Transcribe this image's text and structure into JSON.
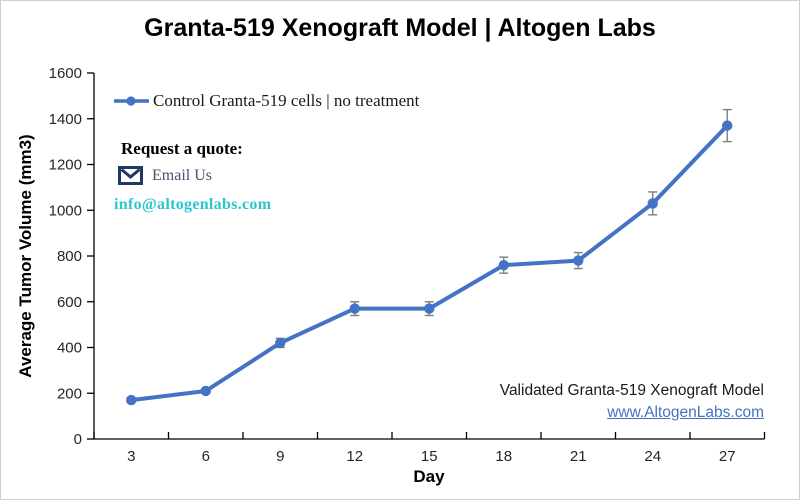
{
  "header": {
    "title": "Granta-519 Xenograft Model | Altogen Labs"
  },
  "quote": {
    "heading": "Request a quote:",
    "email_label": "Email Us",
    "email_address": "info@altogenlabs.com"
  },
  "footer": {
    "note": "Validated Granta-519 Xenograft Model",
    "link": "www.AltogenLabs.com"
  },
  "colors": {
    "series_blue": "#4472C4",
    "error_bar_gray": "#7F7F7F",
    "email_cyan": "#2CC5CE",
    "email_label_slate": "#44546A",
    "envelope_navy": "#203864",
    "link_blue": "#4472C4",
    "axis_black": "#000000"
  },
  "icons": {
    "legend_marker": "line-with-dot-icon",
    "envelope": "envelope-icon"
  },
  "chart_data": {
    "type": "line",
    "title": "Granta-519 Xenograft Model | Altogen Labs",
    "xlabel": "Day",
    "ylabel": "Average Tumor Volume (mm3)",
    "x": [
      3,
      6,
      9,
      12,
      15,
      18,
      21,
      24,
      27
    ],
    "series": [
      {
        "name": "Control Granta-519 cells | no treatment",
        "values": [
          170,
          210,
          420,
          570,
          570,
          760,
          780,
          1030,
          1370
        ],
        "errors": [
          10,
          10,
          20,
          30,
          30,
          35,
          35,
          50,
          70
        ],
        "color": "#4472C4",
        "marker": "circle"
      }
    ],
    "error_color": "#7F7F7F",
    "ylim": [
      0,
      1600
    ],
    "ytick_step": 200,
    "grid": false,
    "legend_position": "top-left-inside"
  }
}
